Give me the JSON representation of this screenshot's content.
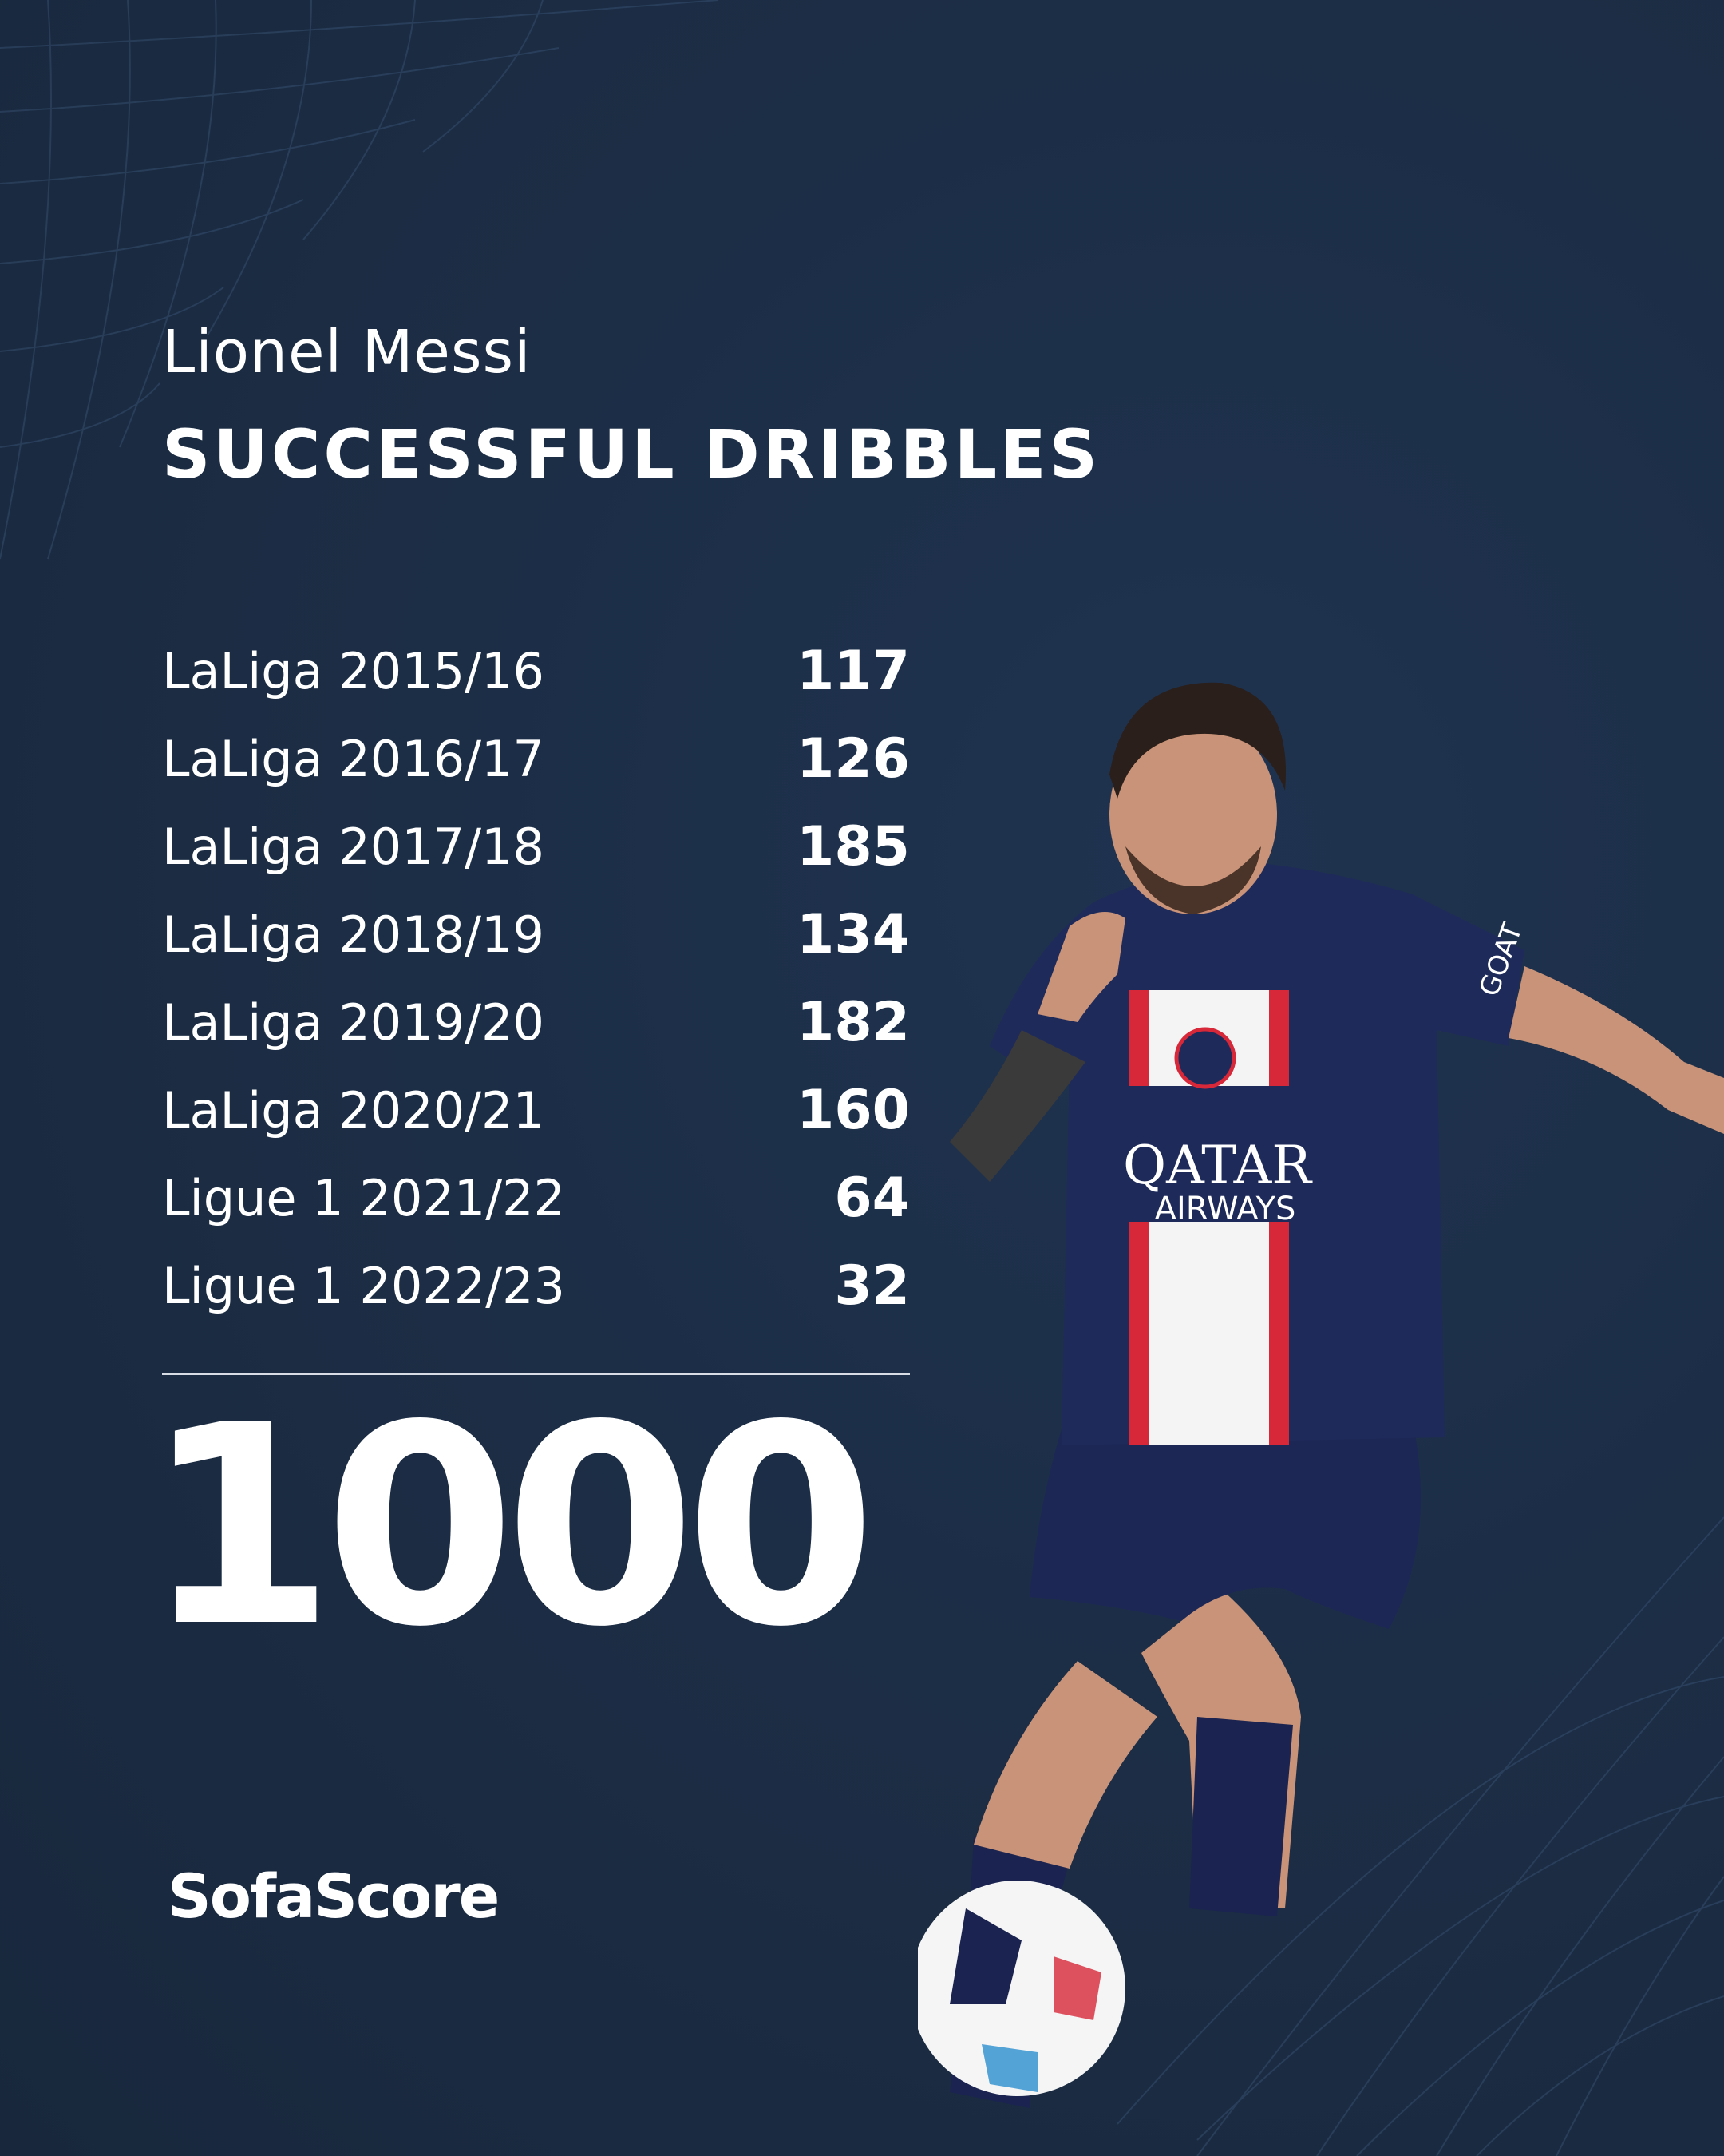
{
  "header": {
    "player_name": "Lionel Messi",
    "title": "SUCCESSFUL DRIBBLES"
  },
  "rows": [
    {
      "label": "LaLiga 2015/16",
      "value": "117"
    },
    {
      "label": "LaLiga 2016/17",
      "value": "126"
    },
    {
      "label": "LaLiga 2017/18",
      "value": "185"
    },
    {
      "label": "LaLiga 2018/19",
      "value": "134"
    },
    {
      "label": "LaLiga 2019/20",
      "value": "182"
    },
    {
      "label": "LaLiga 2020/21",
      "value": "160"
    },
    {
      "label": "Ligue 1 2021/22",
      "value": "64"
    },
    {
      "label": "Ligue 1 2022/23",
      "value": "32"
    }
  ],
  "total": "1000",
  "brand": {
    "name": "SofaScore"
  },
  "photo": {
    "sponsor_line1": "QATAR",
    "sponsor_line2": "AIRWAYS",
    "sleeve_text": "GOAT"
  },
  "colors": {
    "background": "#1c2e46",
    "text": "#ffffff",
    "jersey": "#1e2a5a",
    "stripe_red": "#d7283a"
  }
}
